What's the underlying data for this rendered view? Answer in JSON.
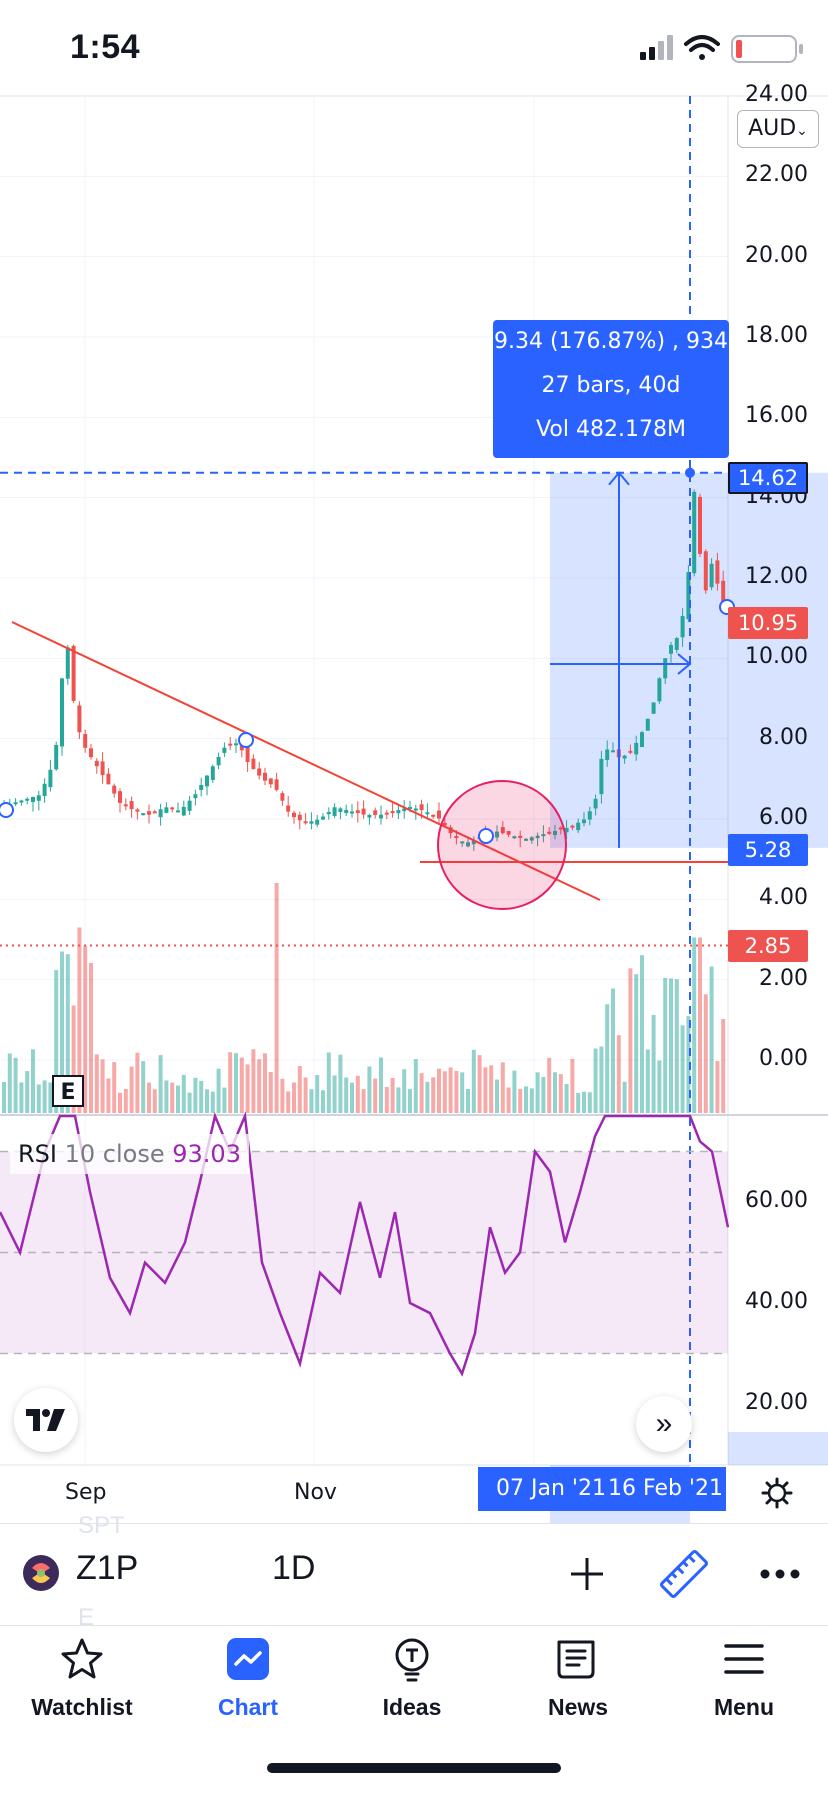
{
  "status_bar": {
    "time": "1:54"
  },
  "chart": {
    "currency": "AUD",
    "price_ticks": [
      "24.00",
      "22.00",
      "20.00",
      "18.00",
      "16.00",
      "14.00",
      "12.00",
      "10.00",
      "8.00",
      "6.00",
      "4.00",
      "2.00",
      "0.00"
    ],
    "rsi_ticks": [
      "60.00",
      "40.00",
      "20.00"
    ],
    "badges": {
      "crosshair_price": "14.62",
      "last_price": "10.95",
      "range_low": "5.28",
      "alert_line": "2.85"
    },
    "measure": {
      "line1": "9.34 (176.87%) , 934",
      "line2": "27 bars, 40d",
      "line3": "Vol 482.178M"
    },
    "earnings_marker": "E",
    "rsi_legend": {
      "name": "RSI",
      "params": "10 close",
      "value": "93.03"
    },
    "x_ticks": [
      "Sep",
      "Nov"
    ],
    "date_range": {
      "start": "07 Jan '21",
      "end": "16 Feb '21"
    },
    "faded_text": {
      "top": "SPT",
      "bottom": "E"
    },
    "colors": {
      "up": "#26a69a",
      "down": "#ef5350",
      "accent": "#2962ff",
      "rsi": "#9c27b0",
      "trendline": "#f44336"
    }
  },
  "toolbar": {
    "symbol": "Z1P",
    "interval": "1D",
    "icons": [
      "plus-icon",
      "ruler-icon",
      "more-icon"
    ]
  },
  "bottom_nav": {
    "items": [
      {
        "label": "Watchlist",
        "icon": "star-icon"
      },
      {
        "label": "Chart",
        "icon": "chart-icon",
        "active": true
      },
      {
        "label": "Ideas",
        "icon": "lightbulb-icon"
      },
      {
        "label": "News",
        "icon": "news-icon"
      },
      {
        "label": "Menu",
        "icon": "hamburger-icon"
      }
    ]
  }
}
